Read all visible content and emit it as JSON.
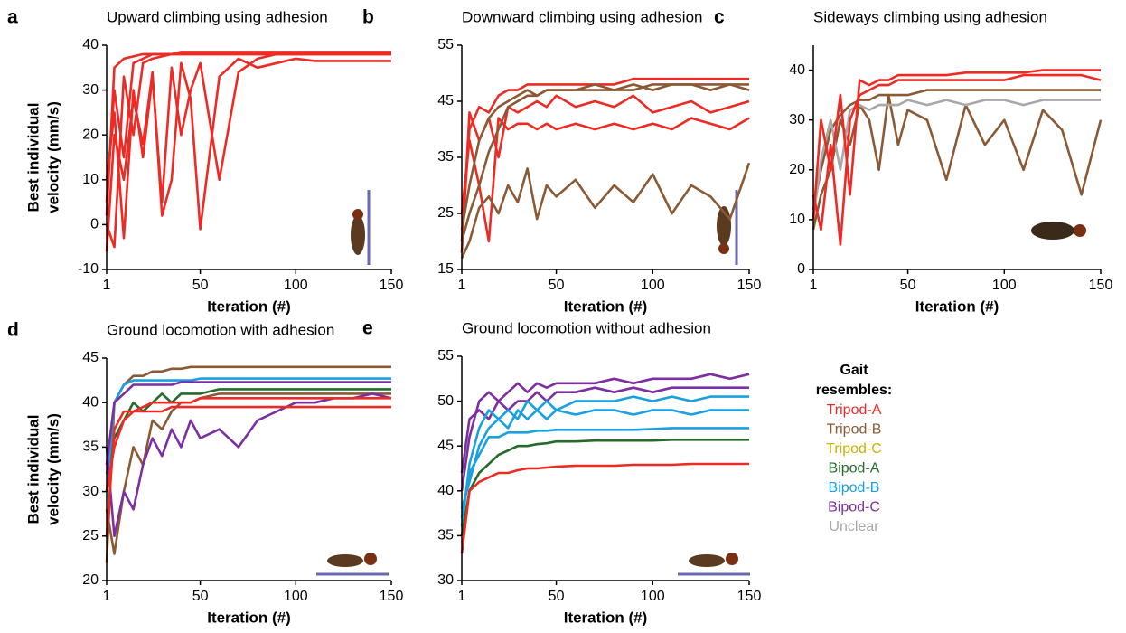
{
  "chart_data": [
    {
      "type": "line",
      "label": "a",
      "title": "Upward climbing using adhesion",
      "xlabel": "Iteration (#)",
      "ylabel": [
        "Best individual",
        "velocity (mm/s)"
      ],
      "x": [
        1,
        5,
        10,
        15,
        20,
        25,
        30,
        35,
        40,
        45,
        50,
        60,
        70,
        80,
        90,
        100,
        110,
        120,
        130,
        140,
        150
      ],
      "xlim": [
        1,
        150
      ],
      "xticks": [
        1,
        50,
        100,
        150
      ],
      "ylim": [
        -10,
        40
      ],
      "yticks": [
        -10,
        0,
        10,
        20,
        30,
        40
      ],
      "series": [
        {
          "color": "#ee2a24",
          "values": [
            5,
            30,
            15,
            36,
            37,
            38,
            38,
            38,
            38.5,
            38.5,
            38.5,
            38.5,
            38.5,
            38.5,
            38.5,
            38.5,
            38.5,
            38.5,
            38.5,
            38.5,
            38.5
          ]
        },
        {
          "color": "#ee2a24",
          "values": [
            0,
            -5,
            33,
            20,
            36,
            37,
            37.5,
            38,
            38,
            38,
            38,
            38,
            38,
            38,
            38,
            38,
            38,
            38,
            38,
            38,
            38
          ]
        },
        {
          "color": "#ee2a24",
          "values": [
            10,
            25,
            -3,
            30,
            15,
            33,
            5,
            35,
            20,
            30,
            36,
            10,
            34,
            37,
            38,
            38,
            38,
            38,
            38,
            38,
            38
          ]
        },
        {
          "color": "#ee2a24",
          "values": [
            -6,
            20,
            10,
            28,
            18,
            34,
            2,
            10,
            36,
            28,
            -1,
            33,
            37,
            35,
            36,
            37,
            36.5,
            36.5,
            36.5,
            36.5,
            36.5
          ]
        },
        {
          "color": "#ee2a24",
          "values": [
            2,
            35,
            37,
            37.5,
            38,
            38,
            38,
            38,
            38,
            38,
            38,
            38,
            38,
            38,
            38,
            38,
            38,
            38,
            38,
            38,
            38
          ]
        }
      ]
    },
    {
      "type": "line",
      "label": "b",
      "title": "Downward climbing using adhesion",
      "xlabel": "Iteration (#)",
      "x": [
        1,
        5,
        10,
        15,
        20,
        25,
        30,
        35,
        40,
        45,
        50,
        60,
        70,
        80,
        90,
        100,
        110,
        120,
        130,
        140,
        150
      ],
      "xlim": [
        1,
        150
      ],
      "xticks": [
        1,
        50,
        100,
        150
      ],
      "ylim": [
        15,
        55
      ],
      "yticks": [
        15,
        25,
        35,
        45,
        55
      ],
      "series": [
        {
          "color": "#ee2a24",
          "values": [
            20,
            40,
            44,
            43,
            46,
            47,
            47,
            48,
            48,
            48,
            48,
            48,
            48,
            48,
            49,
            49,
            49,
            49,
            49,
            49,
            49
          ]
        },
        {
          "color": "#ee2a24",
          "values": [
            25,
            38,
            30,
            20,
            42,
            40,
            41,
            41,
            40,
            41,
            40,
            41,
            40,
            41,
            40,
            41,
            40,
            42,
            41,
            40,
            42
          ]
        },
        {
          "color": "#ee2a24",
          "values": [
            18,
            43,
            38,
            42,
            35,
            44,
            43,
            44,
            45,
            44,
            46,
            44,
            45,
            44,
            46,
            43,
            44,
            45,
            43,
            44,
            45
          ]
        },
        {
          "color": "#8b5a35",
          "values": [
            20,
            25,
            30,
            36,
            40,
            44,
            45,
            46,
            46,
            47,
            47,
            47,
            47,
            47,
            47,
            48,
            48,
            48,
            48,
            48,
            48
          ]
        },
        {
          "color": "#8b5a35",
          "values": [
            17,
            20,
            26,
            28,
            25,
            30,
            27,
            33,
            24,
            30,
            28,
            31,
            26,
            30,
            27,
            32,
            25,
            30,
            28,
            24,
            34
          ]
        },
        {
          "color": "#8b5a35",
          "values": [
            22,
            30,
            38,
            42,
            44,
            45,
            46,
            47,
            46,
            47,
            47,
            47,
            48,
            47,
            48,
            47,
            48,
            48,
            47,
            48,
            47
          ]
        }
      ]
    },
    {
      "type": "line",
      "label": "c",
      "title": "Sideways climbing using adhesion",
      "xlabel": "Iteration (#)",
      "x": [
        1,
        5,
        10,
        15,
        20,
        25,
        30,
        35,
        40,
        45,
        50,
        60,
        70,
        80,
        90,
        100,
        110,
        120,
        130,
        140,
        150
      ],
      "xlim": [
        1,
        150
      ],
      "xticks": [
        1,
        50,
        100,
        150
      ],
      "ylim": [
        0,
        45
      ],
      "yticks": [
        0,
        10,
        20,
        30,
        40
      ],
      "series": [
        {
          "color": "#8b5a35",
          "values": [
            8,
            15,
            20,
            30,
            25,
            33,
            30,
            20,
            35,
            25,
            32,
            30,
            18,
            33,
            25,
            30,
            20,
            32,
            28,
            15,
            30
          ]
        },
        {
          "color": "#8b5a35",
          "values": [
            12,
            20,
            28,
            31,
            33,
            34,
            34,
            35,
            35,
            35,
            35,
            36,
            36,
            36,
            36,
            36,
            36,
            36,
            36,
            36,
            36
          ]
        },
        {
          "color": "#a8a8a8",
          "values": [
            10,
            22,
            30,
            20,
            32,
            33,
            32,
            33,
            33,
            33,
            34,
            33,
            34,
            33,
            34,
            34,
            33,
            34,
            34,
            34,
            34
          ]
        },
        {
          "color": "#ee2a24",
          "values": [
            10,
            30,
            20,
            35,
            15,
            38,
            37,
            38,
            38,
            39,
            39,
            39,
            39,
            39.5,
            39.5,
            39.5,
            39.5,
            40,
            40,
            40,
            40
          ]
        },
        {
          "color": "#ee2a24",
          "values": [
            15,
            8,
            25,
            5,
            30,
            35,
            36,
            37,
            37,
            38,
            38,
            38,
            38,
            38,
            38,
            38,
            39,
            39,
            39,
            39,
            38
          ]
        }
      ]
    },
    {
      "type": "line",
      "label": "d",
      "title": "Ground locomotion with adhesion",
      "xlabel": "Iteration (#)",
      "ylabel": [
        "Best individual",
        "velocity (mm/s)"
      ],
      "x": [
        1,
        5,
        10,
        15,
        20,
        25,
        30,
        35,
        40,
        45,
        50,
        60,
        70,
        80,
        90,
        100,
        110,
        120,
        130,
        140,
        150
      ],
      "xlim": [
        1,
        150
      ],
      "xticks": [
        1,
        50,
        100,
        150
      ],
      "ylim": [
        20,
        45
      ],
      "yticks": [
        20,
        25,
        30,
        35,
        40,
        45
      ],
      "series": [
        {
          "color": "#8b5a35",
          "values": [
            22,
            40,
            42,
            43,
            43,
            43.5,
            43.5,
            43.8,
            43.8,
            44,
            44,
            44,
            44,
            44,
            44,
            44,
            44,
            44,
            44,
            44,
            44
          ]
        },
        {
          "color": "#8b5a35",
          "values": [
            28,
            23,
            30,
            35,
            33,
            38,
            37,
            39,
            40,
            40,
            40.5,
            41,
            41,
            41,
            41,
            41,
            41,
            41,
            41,
            41,
            41
          ]
        },
        {
          "color": "#266b2c",
          "values": [
            32,
            36,
            38,
            40,
            39,
            40,
            41,
            40,
            41,
            41,
            41,
            41.5,
            41.5,
            41.5,
            41.5,
            41.5,
            41.5,
            41.5,
            41.5,
            41.5,
            41.5
          ]
        },
        {
          "color": "#19a0e0",
          "values": [
            30,
            40,
            42,
            42.5,
            42.5,
            42.5,
            42.5,
            42.5,
            42.5,
            42.5,
            42.7,
            42.7,
            42.7,
            42.7,
            42.7,
            42.7,
            42.7,
            42.7,
            42.7,
            42.7,
            42.7
          ]
        },
        {
          "color": "#7b2fa0",
          "values": [
            35,
            25,
            30,
            28,
            33,
            36,
            34,
            37,
            35,
            38,
            36,
            37,
            35,
            38,
            39,
            40,
            40,
            40.5,
            40.5,
            41,
            40.5
          ]
        },
        {
          "color": "#7b2fa0",
          "values": [
            33,
            40,
            41,
            42,
            42,
            42,
            42,
            42,
            42.3,
            42.3,
            42.3,
            42.3,
            42.3,
            42.3,
            42.3,
            42.3,
            42.3,
            42.3,
            42.3,
            42.3,
            42.3
          ]
        },
        {
          "color": "#ee2a24",
          "values": [
            25,
            37,
            39,
            39,
            39.5,
            40,
            40,
            40,
            40,
            40,
            40.5,
            40.5,
            40.5,
            40.5,
            40.5,
            40.5,
            40.5,
            40.5,
            40.5,
            40.5,
            40.5
          ]
        },
        {
          "color": "#ee2a24",
          "values": [
            30,
            35,
            38,
            39,
            39,
            39,
            39,
            39.5,
            39.5,
            39.5,
            39.5,
            39.5,
            39.5,
            39.5,
            39.5,
            39.5,
            39.5,
            39.5,
            39.5,
            39.5,
            39.5
          ]
        }
      ]
    },
    {
      "type": "line",
      "label": "e",
      "title": "Ground locomotion without adhesion",
      "xlabel": "Iteration (#)",
      "x": [
        1,
        5,
        10,
        15,
        20,
        25,
        30,
        35,
        40,
        45,
        50,
        60,
        70,
        80,
        90,
        100,
        110,
        120,
        130,
        140,
        150
      ],
      "xlim": [
        1,
        150
      ],
      "xticks": [
        1,
        50,
        100,
        150
      ],
      "ylim": [
        30,
        55
      ],
      "yticks": [
        30,
        35,
        40,
        45,
        50,
        55
      ],
      "series": [
        {
          "color": "#7b2fa0",
          "values": [
            40,
            46,
            50,
            51,
            50,
            51,
            52,
            51,
            52,
            51.5,
            52,
            52,
            52,
            52.5,
            52,
            52.5,
            52.5,
            52.5,
            53,
            52.5,
            53
          ]
        },
        {
          "color": "#7b2fa0",
          "values": [
            42,
            48,
            49,
            48,
            50,
            49,
            50,
            50,
            51,
            50,
            51,
            51,
            51.5,
            51,
            51.5,
            51,
            51.5,
            51.5,
            51.5,
            51.5,
            51.5
          ]
        },
        {
          "color": "#19a0e0",
          "values": [
            37,
            42,
            44,
            46,
            46,
            46.5,
            46.5,
            46.5,
            46.7,
            46.7,
            46.8,
            46.8,
            46.8,
            46.8,
            46.8,
            46.9,
            47,
            47,
            47,
            47,
            47
          ]
        },
        {
          "color": "#19a0e0",
          "values": [
            38,
            41,
            45,
            47,
            48,
            47,
            49,
            48,
            49,
            48,
            49,
            48.5,
            49,
            49,
            48.5,
            49,
            49,
            48.5,
            49,
            49,
            49
          ]
        },
        {
          "color": "#19a0e0",
          "values": [
            36,
            43,
            47,
            49,
            48,
            49,
            48,
            50,
            49,
            50,
            49,
            50,
            50,
            50,
            50.5,
            50,
            50.5,
            50,
            50.5,
            50.5,
            50.5
          ]
        },
        {
          "color": "#266b2c",
          "values": [
            35,
            40,
            42,
            43,
            44,
            44.5,
            45,
            45,
            45.2,
            45.3,
            45.5,
            45.5,
            45.6,
            45.6,
            45.6,
            45.6,
            45.7,
            45.7,
            45.7,
            45.7,
            45.7
          ]
        },
        {
          "color": "#ee2a24",
          "values": [
            33,
            40,
            41,
            41.5,
            42,
            42,
            42.3,
            42.5,
            42.5,
            42.6,
            42.7,
            42.8,
            42.8,
            42.8,
            42.9,
            42.9,
            42.9,
            43,
            43,
            43,
            43
          ]
        }
      ]
    }
  ],
  "legend": {
    "title": [
      "Gait",
      "resembles:"
    ],
    "entries": [
      {
        "name": "Tripod-A",
        "color": "#ee2a24"
      },
      {
        "name": "Tripod-B",
        "color": "#8b5a35"
      },
      {
        "name": "Tripod-C",
        "color": "#c9b400"
      },
      {
        "name": "Bipod-A",
        "color": "#266b2c"
      },
      {
        "name": "Bipod-B",
        "color": "#19a0e0"
      },
      {
        "name": "Bipod-C",
        "color": "#7b2fa0"
      },
      {
        "name": "Unclear",
        "color": "#a8a8a8"
      }
    ]
  }
}
